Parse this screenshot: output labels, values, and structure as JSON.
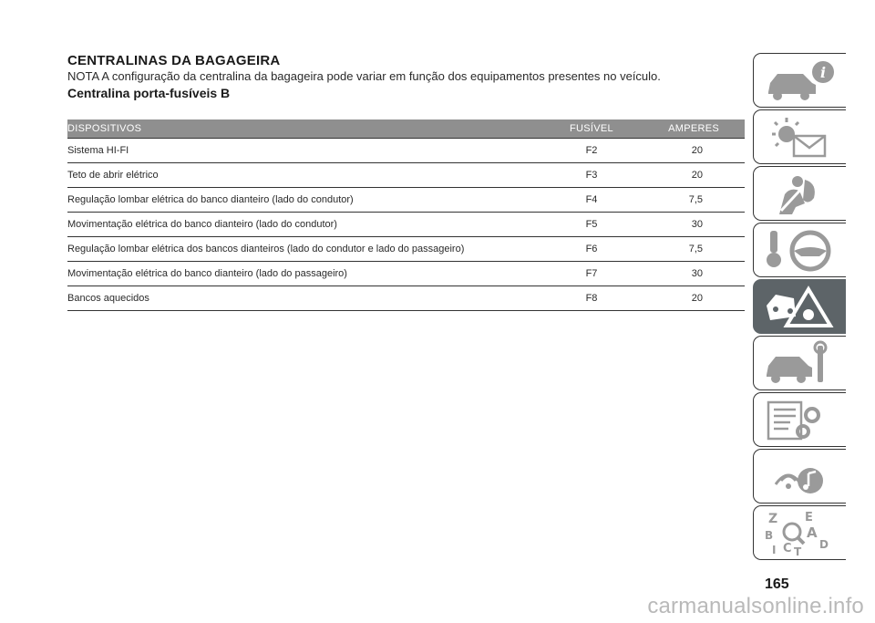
{
  "header": {
    "title": "CENTRALINAS DA BAGAGEIRA",
    "note": "NOTA A configuração da centralina da bagageira pode variar em função dos equipamentos presentes no veículo.",
    "subtitle": "Centralina porta-fusíveis B"
  },
  "table": {
    "columns": [
      "DISPOSITIVOS",
      "FUSÍVEL",
      "AMPERES"
    ],
    "rows": [
      {
        "device": "Sistema HI-FI",
        "fuse": "F2",
        "amperes": "20"
      },
      {
        "device": "Teto de abrir elétrico",
        "fuse": "F3",
        "amperes": "20"
      },
      {
        "device": "Regulação lombar elétrica do banco dianteiro (lado do condutor)",
        "fuse": "F4",
        "amperes": "7,5"
      },
      {
        "device": "Movimentação elétrica do banco dianteiro (lado do condutor)",
        "fuse": "F5",
        "amperes": "30"
      },
      {
        "device": "Regulação lombar elétrica dos bancos dianteiros (lado do condutor e lado do passageiro)",
        "fuse": "F6",
        "amperes": "7,5"
      },
      {
        "device": "Movimentação elétrica do banco dianteiro (lado do passageiro)",
        "fuse": "F7",
        "amperes": "30"
      },
      {
        "device": "Bancos aquecidos",
        "fuse": "F8",
        "amperes": "20"
      }
    ]
  },
  "side_tabs": [
    {
      "icon": "car-info-icon",
      "active": false
    },
    {
      "icon": "warning-lights-icon",
      "active": false
    },
    {
      "icon": "safety-airbag-icon",
      "active": false
    },
    {
      "icon": "key-steering-wheel-icon",
      "active": false
    },
    {
      "icon": "emergency-icon",
      "active": true
    },
    {
      "icon": "maintenance-icon",
      "active": false
    },
    {
      "icon": "technical-data-icon",
      "active": false
    },
    {
      "icon": "multimedia-icon",
      "active": false
    },
    {
      "icon": "index-icon",
      "active": false
    }
  ],
  "side_tab_letters": [
    "Z",
    "E",
    "B",
    "A",
    "C",
    "T",
    "D",
    "I"
  ],
  "page_number": "165",
  "watermark": "carmanualsonline.info",
  "colors": {
    "table_header": "#8f8f8f",
    "active_tab": "#5d6468"
  }
}
